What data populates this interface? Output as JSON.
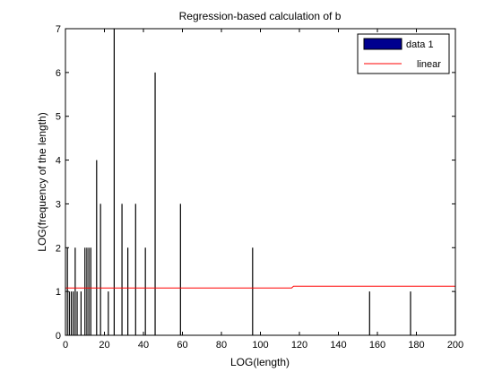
{
  "chart_data": {
    "type": "bar",
    "title": "Regression-based calculation of b",
    "xlabel": "LOG(length)",
    "ylabel": "LOG(frequency of the length)",
    "xlim": [
      0,
      200
    ],
    "ylim": [
      0,
      7
    ],
    "xticks": [
      0,
      20,
      40,
      60,
      80,
      100,
      120,
      140,
      160,
      180,
      200
    ],
    "yticks": [
      0,
      1,
      2,
      3,
      4,
      5,
      6,
      7
    ],
    "grid": false,
    "legend_position": "top-right",
    "series": [
      {
        "name": "data 1",
        "kind": "bar",
        "color": "#00008f",
        "x": [
          1,
          2,
          3,
          4,
          5,
          6,
          8,
          10,
          11,
          12,
          13,
          16,
          18,
          22,
          25,
          29,
          32,
          36,
          41,
          46,
          59,
          96,
          156,
          177,
          200
        ],
        "values": [
          2,
          1,
          1,
          1,
          2,
          1,
          1,
          2,
          2,
          2,
          2,
          4,
          3,
          1,
          7,
          3,
          2,
          3,
          2,
          6,
          3,
          2,
          1,
          1,
          1
        ]
      },
      {
        "name": "linear",
        "kind": "line",
        "color": "#ff0000",
        "x": [
          0,
          116,
          117,
          200
        ],
        "values": [
          1.08,
          1.08,
          1.12,
          1.12
        ]
      }
    ]
  }
}
